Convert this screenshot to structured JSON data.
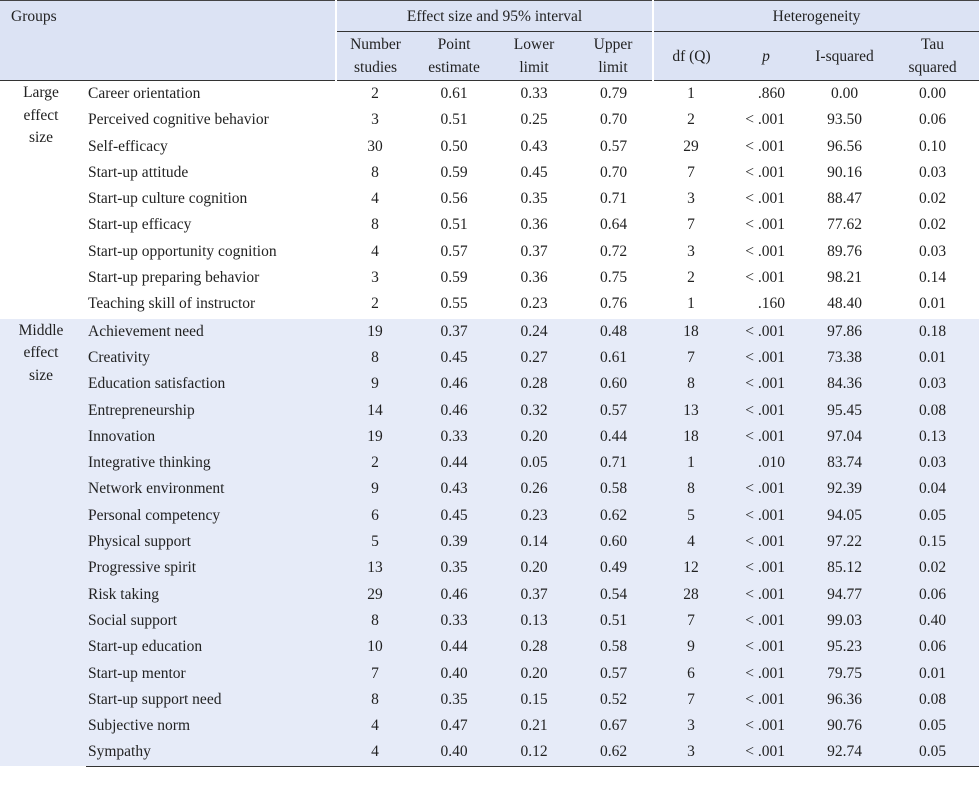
{
  "header": {
    "groups": "Groups",
    "effect_group": "Effect size and 95% interval",
    "het_group": "Heterogeneity",
    "col_n": [
      "Number",
      "studies"
    ],
    "col_point": [
      "Point",
      "estimate"
    ],
    "col_lower": [
      "Lower",
      "limit"
    ],
    "col_upper": [
      "Upper",
      "limit"
    ],
    "col_df": "df (Q)",
    "col_p": "p",
    "col_i2": "I-squared",
    "col_tau": [
      "Tau",
      "squared"
    ]
  },
  "groups": [
    {
      "label": [
        "Large",
        "effect",
        "size"
      ],
      "rows": [
        {
          "name": "Career orientation",
          "n": "2",
          "point": "0.61",
          "lower": "0.33",
          "upper": "0.79",
          "df": "1",
          "p": ".860",
          "i2": "0.00",
          "tau": "0.00"
        },
        {
          "name": "Perceived cognitive behavior",
          "n": "3",
          "point": "0.51",
          "lower": "0.25",
          "upper": "0.70",
          "df": "2",
          "p": "< .001",
          "i2": "93.50",
          "tau": "0.06"
        },
        {
          "name": "Self-efficacy",
          "n": "30",
          "point": "0.50",
          "lower": "0.43",
          "upper": "0.57",
          "df": "29",
          "p": "< .001",
          "i2": "96.56",
          "tau": "0.10"
        },
        {
          "name": "Start-up attitude",
          "n": "8",
          "point": "0.59",
          "lower": "0.45",
          "upper": "0.70",
          "df": "7",
          "p": "< .001",
          "i2": "90.16",
          "tau": "0.03"
        },
        {
          "name": "Start-up culture cognition",
          "n": "4",
          "point": "0.56",
          "lower": "0.35",
          "upper": "0.71",
          "df": "3",
          "p": "< .001",
          "i2": "88.47",
          "tau": "0.02"
        },
        {
          "name": "Start-up efficacy",
          "n": "8",
          "point": "0.51",
          "lower": "0.36",
          "upper": "0.64",
          "df": "7",
          "p": "< .001",
          "i2": "77.62",
          "tau": "0.02"
        },
        {
          "name": "Start-up opportunity cognition",
          "n": "4",
          "point": "0.57",
          "lower": "0.37",
          "upper": "0.72",
          "df": "3",
          "p": "< .001",
          "i2": "89.76",
          "tau": "0.03"
        },
        {
          "name": "Start-up preparing behavior",
          "n": "3",
          "point": "0.59",
          "lower": "0.36",
          "upper": "0.75",
          "df": "2",
          "p": "< .001",
          "i2": "98.21",
          "tau": "0.14"
        },
        {
          "name": "Teaching skill of instructor",
          "n": "2",
          "point": "0.55",
          "lower": "0.23",
          "upper": "0.76",
          "df": "1",
          "p": ".160",
          "i2": "48.40",
          "tau": "0.01"
        }
      ]
    },
    {
      "label": [
        "Middle",
        "effect",
        "size"
      ],
      "rows": [
        {
          "name": "Achievement need",
          "n": "19",
          "point": "0.37",
          "lower": "0.24",
          "upper": "0.48",
          "df": "18",
          "p": "< .001",
          "i2": "97.86",
          "tau": "0.18"
        },
        {
          "name": "Creativity",
          "n": "8",
          "point": "0.45",
          "lower": "0.27",
          "upper": "0.61",
          "df": "7",
          "p": "< .001",
          "i2": "73.38",
          "tau": "0.01"
        },
        {
          "name": "Education satisfaction",
          "n": "9",
          "point": "0.46",
          "lower": "0.28",
          "upper": "0.60",
          "df": "8",
          "p": "< .001",
          "i2": "84.36",
          "tau": "0.03"
        },
        {
          "name": "Entrepreneurship",
          "n": "14",
          "point": "0.46",
          "lower": "0.32",
          "upper": "0.57",
          "df": "13",
          "p": "< .001",
          "i2": "95.45",
          "tau": "0.08"
        },
        {
          "name": "Innovation",
          "n": "19",
          "point": "0.33",
          "lower": "0.20",
          "upper": "0.44",
          "df": "18",
          "p": "< .001",
          "i2": "97.04",
          "tau": "0.13"
        },
        {
          "name": "Integrative thinking",
          "n": "2",
          "point": "0.44",
          "lower": "0.05",
          "upper": "0.71",
          "df": "1",
          "p": ".010",
          "i2": "83.74",
          "tau": "0.03"
        },
        {
          "name": "Network environment",
          "n": "9",
          "point": "0.43",
          "lower": "0.26",
          "upper": "0.58",
          "df": "8",
          "p": "< .001",
          "i2": "92.39",
          "tau": "0.04"
        },
        {
          "name": "Personal competency",
          "n": "6",
          "point": "0.45",
          "lower": "0.23",
          "upper": "0.62",
          "df": "5",
          "p": "< .001",
          "i2": "94.05",
          "tau": "0.05"
        },
        {
          "name": "Physical support",
          "n": "5",
          "point": "0.39",
          "lower": "0.14",
          "upper": "0.60",
          "df": "4",
          "p": "< .001",
          "i2": "97.22",
          "tau": "0.15"
        },
        {
          "name": "Progressive spirit",
          "n": "13",
          "point": "0.35",
          "lower": "0.20",
          "upper": "0.49",
          "df": "12",
          "p": "< .001",
          "i2": "85.12",
          "tau": "0.02"
        },
        {
          "name": "Risk taking",
          "n": "29",
          "point": "0.46",
          "lower": "0.37",
          "upper": "0.54",
          "df": "28",
          "p": "< .001",
          "i2": "94.77",
          "tau": "0.06"
        },
        {
          "name": "Social support",
          "n": "8",
          "point": "0.33",
          "lower": "0.13",
          "upper": "0.51",
          "df": "7",
          "p": "< .001",
          "i2": "99.03",
          "tau": "0.40"
        },
        {
          "name": "Start-up education",
          "n": "10",
          "point": "0.44",
          "lower": "0.28",
          "upper": "0.58",
          "df": "9",
          "p": "< .001",
          "i2": "95.23",
          "tau": "0.06"
        },
        {
          "name": "Start-up mentor",
          "n": "7",
          "point": "0.40",
          "lower": "0.20",
          "upper": "0.57",
          "df": "6",
          "p": "< .001",
          "i2": "79.75",
          "tau": "0.01"
        },
        {
          "name": "Start-up support need",
          "n": "8",
          "point": "0.35",
          "lower": "0.15",
          "upper": "0.52",
          "df": "7",
          "p": "< .001",
          "i2": "96.36",
          "tau": "0.08"
        },
        {
          "name": "Subjective norm",
          "n": "4",
          "point": "0.47",
          "lower": "0.21",
          "upper": "0.67",
          "df": "3",
          "p": "< .001",
          "i2": "90.76",
          "tau": "0.05"
        },
        {
          "name": "Sympathy",
          "n": "4",
          "point": "0.40",
          "lower": "0.12",
          "upper": "0.62",
          "df": "3",
          "p": "< .001",
          "i2": "92.74",
          "tau": "0.05"
        }
      ]
    }
  ]
}
